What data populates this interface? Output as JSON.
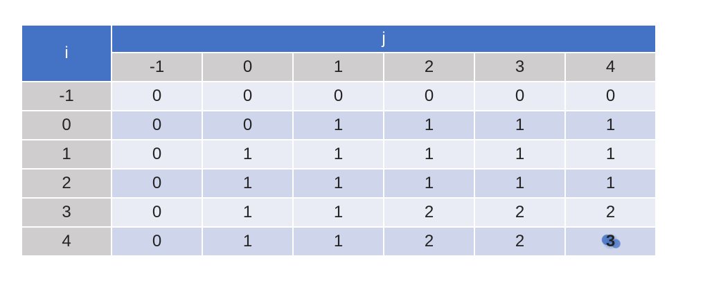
{
  "table": {
    "header": {
      "i": "i",
      "j": "j"
    },
    "columns": [
      -1,
      0,
      1,
      2,
      3,
      4
    ],
    "rows": [
      {
        "label": -1,
        "cells": [
          0,
          0,
          0,
          0,
          0,
          0
        ]
      },
      {
        "label": 0,
        "cells": [
          0,
          0,
          1,
          1,
          1,
          1
        ]
      },
      {
        "label": 1,
        "cells": [
          0,
          1,
          1,
          1,
          1,
          1
        ]
      },
      {
        "label": 2,
        "cells": [
          0,
          1,
          1,
          1,
          1,
          1
        ]
      },
      {
        "label": 3,
        "cells": [
          0,
          1,
          1,
          2,
          2,
          2
        ]
      },
      {
        "label": 4,
        "cells": [
          0,
          1,
          1,
          2,
          2,
          3
        ]
      }
    ]
  }
}
